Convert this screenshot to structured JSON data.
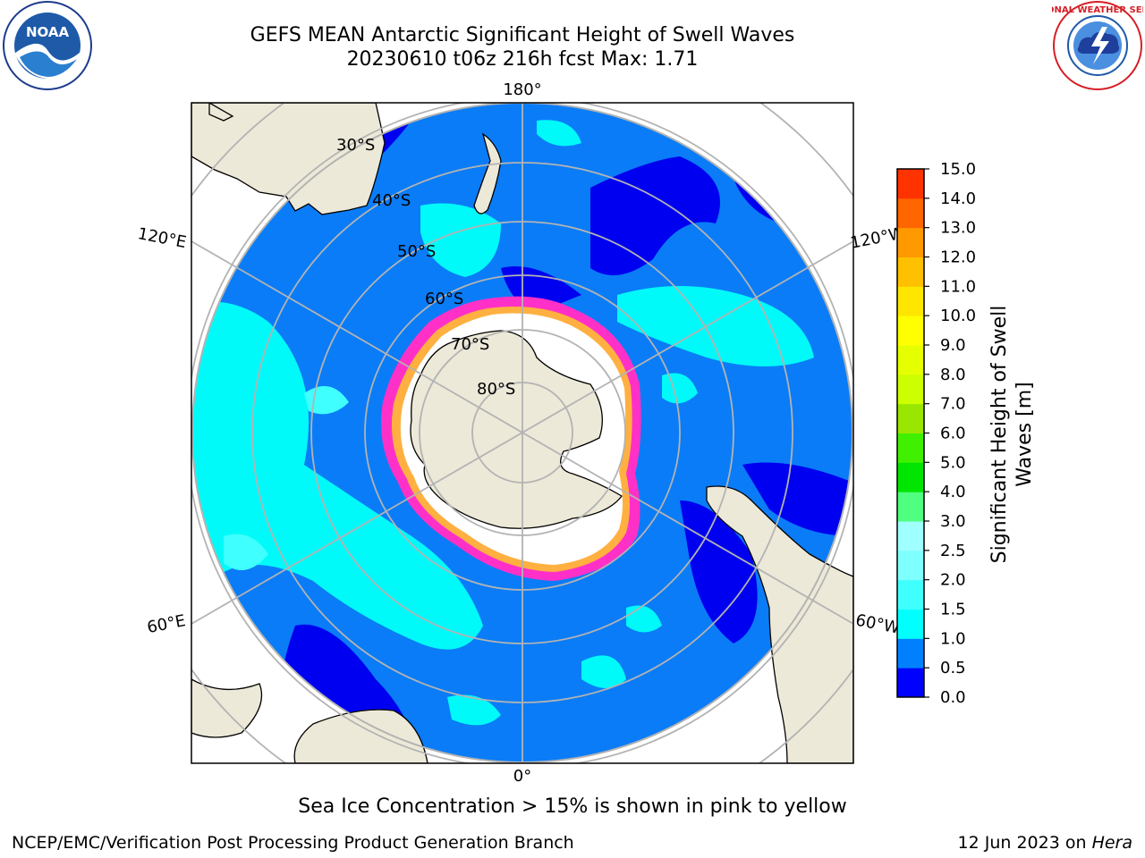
{
  "title": {
    "line1": "GEFS MEAN Antarctic Significant Height of Swell Waves",
    "line2": "20230610 t06z 216h fcst   Max: 1.71"
  },
  "logos": {
    "left": {
      "icon": "noaa-logo",
      "text": "NOAA"
    },
    "right": {
      "icon": "nws-logo",
      "text": "NATIONAL WEATHER SERVICE"
    }
  },
  "map": {
    "projection": "south-polar-stereographic",
    "longitude_labels": {
      "top": "180°",
      "bottom": "0°",
      "upper_left": "120°E",
      "upper_right": "120°W",
      "lower_left": "60°E",
      "lower_right": "60°W"
    },
    "latitude_labels": [
      "30°S",
      "40°S",
      "50°S",
      "60°S",
      "70°S",
      "80°S"
    ],
    "colors": {
      "land": "#ede9d8",
      "ocean_low": "#0a7cf7",
      "ocean_very_low": "#0000f0",
      "ocean_mid": "#00fafa",
      "ice_edge": "#ff30c8",
      "ice_fill": "#ffffff",
      "grid": "#b3b3b3"
    }
  },
  "colorbar": {
    "label_line1": "Significant Height of Swell",
    "label_line2": "Waves [m]",
    "ticks": [
      "0.0",
      "0.5",
      "1.0",
      "1.5",
      "2.0",
      "2.5",
      "3.0",
      "4.0",
      "5.0",
      "6.0",
      "7.0",
      "8.0",
      "9.0",
      "10.0",
      "11.0",
      "12.0",
      "13.0",
      "14.0",
      "15.0"
    ],
    "colors": [
      "#0000ff",
      "#0080ff",
      "#00ffff",
      "#40ffff",
      "#80ffff",
      "#a0ffff",
      "#50ff80",
      "#00e600",
      "#40f000",
      "#99e600",
      "#ccff00",
      "#e6ff00",
      "#ffff00",
      "#ffe600",
      "#ffc000",
      "#ff9900",
      "#ff6600",
      "#ff3300",
      "#ff0000"
    ]
  },
  "captions": {
    "ice": "Sea Ice Concentration > 15% is shown in pink to yellow",
    "footer_left": "NCEP/EMC/Verification Post Processing Product Generation Branch",
    "footer_right_date": "12 Jun 2023 on ",
    "footer_right_machine": "Hera"
  }
}
